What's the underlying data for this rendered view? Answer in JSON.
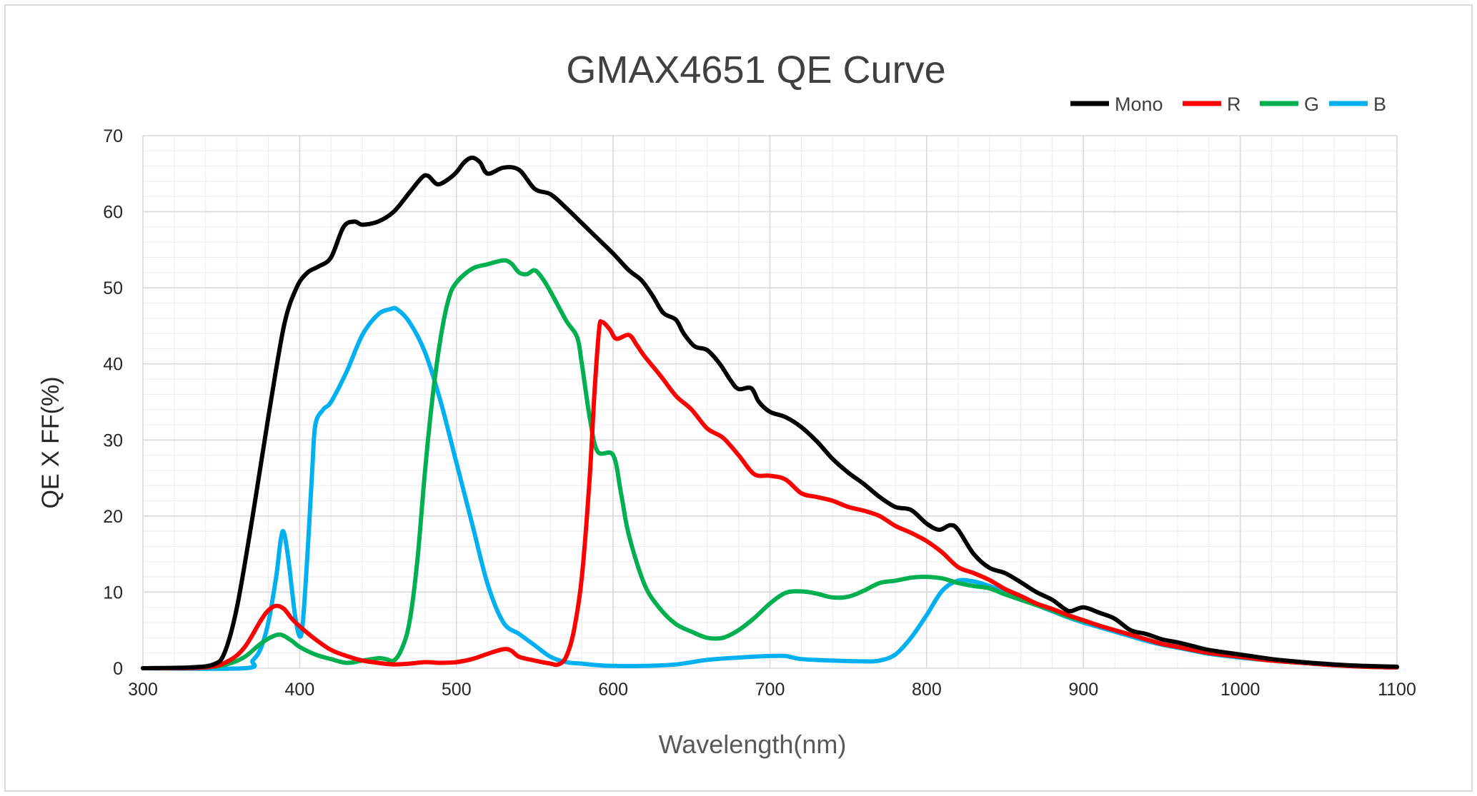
{
  "chart_data": {
    "type": "line",
    "title": "GMAX4651 QE  Curve",
    "xlabel": "Wavelength(nm)",
    "ylabel": "QE X FF(%)",
    "xlim": [
      300,
      1100
    ],
    "ylim": [
      0,
      70
    ],
    "x_ticks": [
      "300",
      "400",
      "500",
      "600",
      "700",
      "800",
      "900",
      "1000",
      "1100"
    ],
    "y_ticks": [
      "0",
      "10",
      "20",
      "30",
      "40",
      "50",
      "60",
      "70"
    ],
    "grid": "major and minor",
    "legend_position": "top-right",
    "series": [
      {
        "name": "Mono",
        "color": "#000000",
        "points": [
          [
            300,
            0
          ],
          [
            330,
            0.1
          ],
          [
            345,
            0.5
          ],
          [
            352,
            2
          ],
          [
            360,
            8
          ],
          [
            370,
            20
          ],
          [
            380,
            33
          ],
          [
            390,
            45
          ],
          [
            398,
            50
          ],
          [
            405,
            52
          ],
          [
            412,
            52.8
          ],
          [
            420,
            54
          ],
          [
            428,
            58
          ],
          [
            435,
            58.7
          ],
          [
            440,
            58.3
          ],
          [
            450,
            58.7
          ],
          [
            460,
            60
          ],
          [
            470,
            62.5
          ],
          [
            478,
            64.5
          ],
          [
            482,
            64.7
          ],
          [
            488,
            63.6
          ],
          [
            495,
            64.3
          ],
          [
            500,
            65.2
          ],
          [
            505,
            66.5
          ],
          [
            510,
            67.1
          ],
          [
            515,
            66.5
          ],
          [
            520,
            65
          ],
          [
            530,
            65.8
          ],
          [
            540,
            65.5
          ],
          [
            550,
            63
          ],
          [
            560,
            62.3
          ],
          [
            570,
            60.5
          ],
          [
            580,
            58.5
          ],
          [
            590,
            56.5
          ],
          [
            600,
            54.5
          ],
          [
            610,
            52.3
          ],
          [
            618,
            51
          ],
          [
            625,
            49
          ],
          [
            632,
            46.7
          ],
          [
            640,
            45.8
          ],
          [
            645,
            44
          ],
          [
            652,
            42.3
          ],
          [
            660,
            41.8
          ],
          [
            668,
            40
          ],
          [
            675,
            37.8
          ],
          [
            680,
            36.7
          ],
          [
            688,
            36.8
          ],
          [
            693,
            35
          ],
          [
            700,
            33.7
          ],
          [
            710,
            33
          ],
          [
            720,
            31.7
          ],
          [
            730,
            29.8
          ],
          [
            740,
            27.5
          ],
          [
            750,
            25.7
          ],
          [
            760,
            24.2
          ],
          [
            770,
            22.5
          ],
          [
            780,
            21.2
          ],
          [
            790,
            20.8
          ],
          [
            800,
            19
          ],
          [
            808,
            18.2
          ],
          [
            815,
            18.8
          ],
          [
            820,
            18.2
          ],
          [
            830,
            15
          ],
          [
            840,
            13.2
          ],
          [
            850,
            12.5
          ],
          [
            860,
            11.3
          ],
          [
            870,
            10
          ],
          [
            880,
            9
          ],
          [
            888,
            7.8
          ],
          [
            892,
            7.5
          ],
          [
            900,
            8
          ],
          [
            910,
            7.3
          ],
          [
            920,
            6.5
          ],
          [
            930,
            5
          ],
          [
            940,
            4.5
          ],
          [
            950,
            3.8
          ],
          [
            960,
            3.4
          ],
          [
            970,
            2.9
          ],
          [
            980,
            2.4
          ],
          [
            1000,
            1.8
          ],
          [
            1020,
            1.2
          ],
          [
            1040,
            0.8
          ],
          [
            1060,
            0.5
          ],
          [
            1080,
            0.3
          ],
          [
            1100,
            0.2
          ]
        ]
      },
      {
        "name": "R",
        "color": "#ff0000",
        "points": [
          [
            300,
            0
          ],
          [
            340,
            0.1
          ],
          [
            355,
            1
          ],
          [
            365,
            2.8
          ],
          [
            375,
            6.2
          ],
          [
            380,
            7.6
          ],
          [
            385,
            8.2
          ],
          [
            390,
            7.8
          ],
          [
            395,
            6.5
          ],
          [
            400,
            5.5
          ],
          [
            410,
            3.8
          ],
          [
            420,
            2.4
          ],
          [
            430,
            1.6
          ],
          [
            440,
            1
          ],
          [
            450,
            0.7
          ],
          [
            460,
            0.5
          ],
          [
            470,
            0.6
          ],
          [
            480,
            0.8
          ],
          [
            490,
            0.7
          ],
          [
            500,
            0.8
          ],
          [
            510,
            1.2
          ],
          [
            520,
            1.9
          ],
          [
            530,
            2.5
          ],
          [
            535,
            2.3
          ],
          [
            540,
            1.5
          ],
          [
            550,
            1
          ],
          [
            560,
            0.6
          ],
          [
            565,
            0.5
          ],
          [
            570,
            1.5
          ],
          [
            575,
            5
          ],
          [
            580,
            12
          ],
          [
            585,
            25
          ],
          [
            588,
            36
          ],
          [
            591,
            44.5
          ],
          [
            593,
            45.5
          ],
          [
            598,
            44.5
          ],
          [
            602,
            43.3
          ],
          [
            610,
            43.8
          ],
          [
            615,
            42.5
          ],
          [
            620,
            41
          ],
          [
            630,
            38.5
          ],
          [
            640,
            35.8
          ],
          [
            650,
            34
          ],
          [
            660,
            31.5
          ],
          [
            670,
            30.3
          ],
          [
            680,
            28
          ],
          [
            690,
            25.5
          ],
          [
            700,
            25.3
          ],
          [
            710,
            24.8
          ],
          [
            720,
            23
          ],
          [
            730,
            22.5
          ],
          [
            740,
            22
          ],
          [
            750,
            21.2
          ],
          [
            760,
            20.7
          ],
          [
            770,
            20
          ],
          [
            780,
            18.7
          ],
          [
            790,
            17.8
          ],
          [
            800,
            16.7
          ],
          [
            810,
            15.2
          ],
          [
            820,
            13.3
          ],
          [
            830,
            12.5
          ],
          [
            840,
            11.6
          ],
          [
            850,
            10.4
          ],
          [
            860,
            9.5
          ],
          [
            870,
            8.5
          ],
          [
            880,
            7.8
          ],
          [
            890,
            7
          ],
          [
            900,
            6.3
          ],
          [
            910,
            5.6
          ],
          [
            920,
            5
          ],
          [
            930,
            4.4
          ],
          [
            940,
            3.8
          ],
          [
            950,
            3.2
          ],
          [
            960,
            2.8
          ],
          [
            970,
            2.4
          ],
          [
            980,
            2
          ],
          [
            1000,
            1.5
          ],
          [
            1020,
            1
          ],
          [
            1040,
            0.7
          ],
          [
            1060,
            0.4
          ],
          [
            1080,
            0.2
          ],
          [
            1100,
            0.1
          ]
        ]
      },
      {
        "name": "G",
        "color": "#00b050",
        "points": [
          [
            300,
            0
          ],
          [
            340,
            0.1
          ],
          [
            355,
            0.6
          ],
          [
            365,
            1.5
          ],
          [
            375,
            3.2
          ],
          [
            382,
            4.1
          ],
          [
            388,
            4.4
          ],
          [
            395,
            3.6
          ],
          [
            400,
            2.8
          ],
          [
            410,
            1.8
          ],
          [
            420,
            1.2
          ],
          [
            430,
            0.7
          ],
          [
            440,
            1
          ],
          [
            450,
            1.3
          ],
          [
            455,
            1.2
          ],
          [
            460,
            1
          ],
          [
            465,
            2.5
          ],
          [
            470,
            6
          ],
          [
            475,
            14
          ],
          [
            480,
            26
          ],
          [
            485,
            36
          ],
          [
            490,
            43.5
          ],
          [
            495,
            48.5
          ],
          [
            500,
            50.7
          ],
          [
            510,
            52.5
          ],
          [
            520,
            53.1
          ],
          [
            530,
            53.6
          ],
          [
            535,
            53.2
          ],
          [
            540,
            52
          ],
          [
            545,
            51.8
          ],
          [
            550,
            52.3
          ],
          [
            555,
            51.2
          ],
          [
            560,
            49.5
          ],
          [
            570,
            45.7
          ],
          [
            577,
            43.5
          ],
          [
            580,
            40
          ],
          [
            585,
            33
          ],
          [
            590,
            28.5
          ],
          [
            600,
            28
          ],
          [
            605,
            23
          ],
          [
            610,
            17.5
          ],
          [
            620,
            11
          ],
          [
            630,
            7.8
          ],
          [
            640,
            5.8
          ],
          [
            650,
            4.8
          ],
          [
            660,
            4
          ],
          [
            670,
            4
          ],
          [
            680,
            5
          ],
          [
            690,
            6.6
          ],
          [
            700,
            8.5
          ],
          [
            710,
            9.9
          ],
          [
            720,
            10.1
          ],
          [
            730,
            9.8
          ],
          [
            740,
            9.3
          ],
          [
            750,
            9.4
          ],
          [
            760,
            10.2
          ],
          [
            770,
            11.2
          ],
          [
            780,
            11.5
          ],
          [
            790,
            11.9
          ],
          [
            800,
            12
          ],
          [
            810,
            11.8
          ],
          [
            820,
            11.2
          ],
          [
            830,
            10.8
          ],
          [
            840,
            10.5
          ],
          [
            850,
            9.7
          ],
          [
            860,
            9
          ],
          [
            870,
            8.3
          ],
          [
            880,
            7.6
          ],
          [
            890,
            6.8
          ],
          [
            900,
            6.2
          ],
          [
            910,
            5.6
          ],
          [
            920,
            5
          ],
          [
            930,
            4.4
          ],
          [
            940,
            3.8
          ],
          [
            950,
            3.2
          ],
          [
            960,
            2.8
          ],
          [
            970,
            2.4
          ],
          [
            980,
            2
          ],
          [
            1000,
            1.5
          ],
          [
            1020,
            1
          ],
          [
            1040,
            0.7
          ],
          [
            1060,
            0.4
          ],
          [
            1080,
            0.2
          ],
          [
            1100,
            0.1
          ]
        ]
      },
      {
        "name": "B",
        "color": "#00b0f0",
        "points": [
          [
            300,
            0
          ],
          [
            365,
            0
          ],
          [
            370,
            1
          ],
          [
            375,
            2.5
          ],
          [
            380,
            6
          ],
          [
            385,
            12
          ],
          [
            388,
            17
          ],
          [
            390,
            17.8
          ],
          [
            393,
            14
          ],
          [
            397,
            7
          ],
          [
            400,
            4.2
          ],
          [
            402,
            6
          ],
          [
            405,
            15
          ],
          [
            408,
            26
          ],
          [
            410,
            32
          ],
          [
            415,
            34
          ],
          [
            420,
            35
          ],
          [
            430,
            39
          ],
          [
            440,
            43.8
          ],
          [
            450,
            46.5
          ],
          [
            458,
            47.2
          ],
          [
            462,
            47.2
          ],
          [
            470,
            45.5
          ],
          [
            480,
            41.5
          ],
          [
            490,
            35
          ],
          [
            500,
            27
          ],
          [
            510,
            19
          ],
          [
            520,
            11
          ],
          [
            530,
            6
          ],
          [
            540,
            4.5
          ],
          [
            550,
            3
          ],
          [
            560,
            1.5
          ],
          [
            570,
            0.8
          ],
          [
            580,
            0.6
          ],
          [
            590,
            0.4
          ],
          [
            600,
            0.3
          ],
          [
            620,
            0.3
          ],
          [
            640,
            0.5
          ],
          [
            660,
            1.1
          ],
          [
            680,
            1.4
          ],
          [
            700,
            1.6
          ],
          [
            710,
            1.6
          ],
          [
            720,
            1.2
          ],
          [
            740,
            1
          ],
          [
            760,
            0.9
          ],
          [
            770,
            1
          ],
          [
            780,
            1.8
          ],
          [
            790,
            4
          ],
          [
            800,
            7
          ],
          [
            810,
            10.2
          ],
          [
            820,
            11.5
          ],
          [
            830,
            11.4
          ],
          [
            840,
            10.8
          ],
          [
            850,
            10
          ],
          [
            860,
            9.1
          ],
          [
            870,
            8.3
          ],
          [
            880,
            7.5
          ],
          [
            890,
            6.7
          ],
          [
            900,
            6
          ],
          [
            910,
            5.4
          ],
          [
            920,
            4.8
          ],
          [
            930,
            4.2
          ],
          [
            940,
            3.6
          ],
          [
            950,
            3.1
          ],
          [
            960,
            2.7
          ],
          [
            970,
            2.3
          ],
          [
            980,
            1.9
          ],
          [
            1000,
            1.4
          ],
          [
            1020,
            1
          ],
          [
            1040,
            0.7
          ],
          [
            1060,
            0.4
          ],
          [
            1080,
            0.2
          ],
          [
            1100,
            0.1
          ]
        ]
      }
    ]
  }
}
